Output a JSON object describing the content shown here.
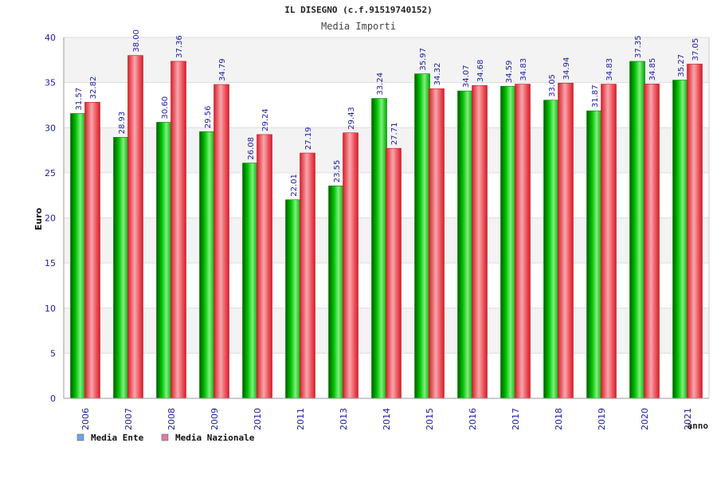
{
  "chart_data": {
    "type": "bar",
    "title": "IL DISEGNO (c.f.91519740152)",
    "subtitle": "Media Importi",
    "xlabel": "anno",
    "ylabel": "Euro",
    "ylim": [
      0,
      40
    ],
    "yticks": [
      "0",
      "5",
      "10",
      "15",
      "20",
      "25",
      "30",
      "35",
      "40"
    ],
    "grid": true,
    "legend_position": "bottom-left",
    "categories": [
      "2006",
      "2007",
      "2008",
      "2009",
      "2010",
      "2011",
      "2013",
      "2014",
      "2015",
      "2016",
      "2017",
      "2018",
      "2019",
      "2020",
      "2021"
    ],
    "series": [
      {
        "name": "Media Ente",
        "values": [
          31.57,
          28.93,
          30.6,
          29.56,
          26.08,
          22.01,
          23.55,
          33.24,
          35.97,
          34.07,
          34.59,
          33.05,
          31.87,
          37.35,
          35.27
        ],
        "labels": [
          "31.57",
          "28.93",
          "30.60",
          "29.56",
          "26.08",
          "22.01",
          "23.55",
          "33.24",
          "35.97",
          "34.07",
          "34.59",
          "33.05",
          "31.87",
          "37.35",
          "35.27"
        ],
        "bar_color": "#00b400",
        "legend_color": "#6aa7e8"
      },
      {
        "name": "Media Nazionale",
        "values": [
          32.82,
          38.0,
          37.36,
          34.79,
          29.24,
          27.19,
          29.43,
          27.71,
          34.32,
          34.68,
          34.83,
          34.94,
          34.83,
          34.85,
          37.05
        ],
        "labels": [
          "32.82",
          "38.00",
          "37.36",
          "34.79",
          "29.24",
          "27.19",
          "29.43",
          "27.71",
          "34.32",
          "34.68",
          "34.83",
          "34.94",
          "34.83",
          "34.85",
          "37.05"
        ],
        "bar_color": "#e8303a",
        "legend_color": "#e07aa5"
      }
    ],
    "colors": {
      "axis_text": "#1a1aa6",
      "value_label": "#1a1aa6",
      "title_text": "#222222",
      "band_light": "#f3f3f3",
      "band_white": "#ffffff"
    }
  }
}
